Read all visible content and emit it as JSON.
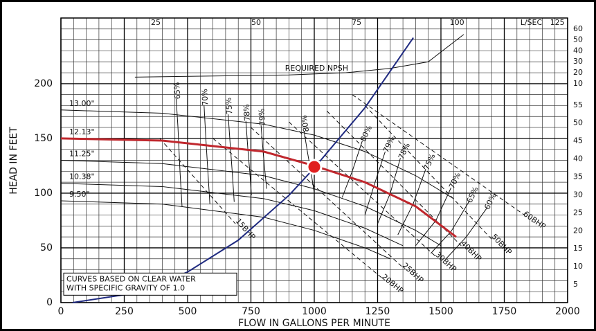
{
  "chart_data": {
    "type": "line",
    "xlabel": "FLOW IN GALLONS PER MINUTE",
    "ylabel": "HEAD IN FEET",
    "xlim": [
      0,
      2000
    ],
    "xticks": [
      0,
      250,
      500,
      750,
      1000,
      1250,
      1500,
      1750,
      2000
    ],
    "ylim": [
      0,
      260
    ],
    "yticks": [
      0,
      50,
      100,
      150,
      200
    ],
    "x2label": "L/SEC",
    "x2lim": [
      0,
      126.18
    ],
    "x2ticks": [
      25,
      50,
      75,
      100,
      125
    ],
    "y2lim": [
      0,
      79.25
    ],
    "y2ticks": [
      5,
      10,
      15,
      20,
      25,
      30,
      35,
      40,
      45,
      50,
      55
    ],
    "y3lim": [
      -190,
      70
    ],
    "y3ticks": [
      10,
      20,
      30,
      40,
      50,
      60
    ],
    "grid": true,
    "xgrid_step": 50,
    "ygrid_step": 10,
    "impeller_curves": [
      {
        "name": "13.00\"",
        "color": "#111111",
        "x": [
          0,
          400,
          800,
          1000,
          1200,
          1400,
          1550
        ],
        "values": [
          176,
          173,
          163,
          153,
          138,
          116,
          95
        ]
      },
      {
        "name": "12.13\"",
        "color": "#c0272d",
        "x": [
          0,
          400,
          800,
          1000,
          1200,
          1400,
          1560
        ],
        "values": [
          150,
          148,
          138,
          125,
          110,
          88,
          60
        ]
      },
      {
        "name": "11.25\"",
        "color": "#111111",
        "x": [
          0,
          400,
          800,
          1000,
          1200,
          1400,
          1500
        ],
        "values": [
          130,
          127,
          116,
          104,
          88,
          66,
          52
        ]
      },
      {
        "name": "10.38\"",
        "color": "#111111",
        "x": [
          0,
          400,
          800,
          1000,
          1200,
          1350
        ],
        "values": [
          109,
          106,
          95,
          84,
          68,
          52
        ]
      },
      {
        "name": "9.50\"",
        "color": "#111111",
        "x": [
          0,
          400,
          800,
          1000,
          1200,
          1300
        ],
        "values": [
          93,
          90,
          78,
          66,
          50,
          40
        ]
      }
    ],
    "efficiency_left": [
      {
        "name": "65%",
        "color": "#111111",
        "x": [
          455,
          462,
          470,
          478
        ],
        "values": [
          186,
          160,
          120,
          88
        ]
      },
      {
        "name": "70%",
        "color": "#111111",
        "x": [
          565,
          572,
          580,
          588
        ],
        "values": [
          180,
          150,
          120,
          90
        ]
      },
      {
        "name": "75%",
        "color": "#111111",
        "x": [
          660,
          668,
          676,
          684
        ],
        "values": [
          172,
          145,
          120,
          92
        ]
      },
      {
        "name": "78%",
        "color": "#111111",
        "x": [
          730,
          738,
          746,
          752
        ],
        "values": [
          166,
          140,
          118,
          98
        ]
      },
      {
        "name": "79%",
        "color": "#111111",
        "x": [
          790,
          798,
          806,
          812
        ],
        "values": [
          162,
          138,
          118,
          104
        ]
      },
      {
        "name": "80%",
        "color": "#111111",
        "x": [
          960,
          975,
          990,
          1000
        ],
        "values": [
          156,
          135,
          115,
          100
        ]
      }
    ],
    "efficiency_right": [
      {
        "name": "80%",
        "color": "#111111",
        "x": [
          1190,
          1150,
          1110
        ],
        "values": [
          148,
          120,
          96
        ]
      },
      {
        "name": "79%",
        "color": "#111111",
        "x": [
          1280,
          1240,
          1200
        ],
        "values": [
          138,
          110,
          80
        ]
      },
      {
        "name": "78%",
        "color": "#111111",
        "x": [
          1340,
          1300,
          1250
        ],
        "values": [
          132,
          100,
          72
        ]
      },
      {
        "name": "75%",
        "color": "#111111",
        "x": [
          1440,
          1390,
          1330
        ],
        "values": [
          122,
          90,
          62
        ]
      },
      {
        "name": "70%",
        "color": "#111111",
        "x": [
          1540,
          1480,
          1400
        ],
        "values": [
          105,
          75,
          52
        ]
      },
      {
        "name": "65%",
        "color": "#111111",
        "x": [
          1610,
          1540,
          1460
        ],
        "values": [
          92,
          65,
          45
        ]
      },
      {
        "name": "60%",
        "color": "#111111",
        "x": [
          1680,
          1600,
          1520
        ],
        "values": [
          86,
          60,
          40
        ]
      }
    ],
    "power_curves": [
      {
        "name": "15BHP",
        "color": "#111111",
        "dashed": true,
        "x": [
          390,
          689
        ],
        "values": [
          150,
          72
        ]
      },
      {
        "name": "20BHP",
        "color": "#111111",
        "dashed": true,
        "x": [
          600,
          1270
        ],
        "values": [
          150,
          22
        ]
      },
      {
        "name": "25BHP",
        "color": "#111111",
        "dashed": true,
        "x": [
          750,
          1350
        ],
        "values": [
          160,
          32
        ]
      },
      {
        "name": "30BHP",
        "color": "#111111",
        "dashed": true,
        "x": [
          900,
          1480
        ],
        "values": [
          165,
          42
        ]
      },
      {
        "name": "40BHP",
        "color": "#111111",
        "dashed": true,
        "x": [
          1050,
          1580
        ],
        "values": [
          175,
          52
        ]
      },
      {
        "name": "50BHP",
        "color": "#111111",
        "dashed": true,
        "x": [
          1200,
          1700
        ],
        "values": [
          180,
          58
        ]
      },
      {
        "name": "60BHP",
        "color": "#111111",
        "dashed": true,
        "x": [
          1150,
          1830
        ],
        "values": [
          190,
          80
        ]
      }
    ],
    "system_curve": {
      "color": "#1f2a80",
      "x": [
        46,
        300,
        500,
        700,
        900,
        1000,
        1200,
        1391
      ],
      "values": [
        0,
        9,
        28,
        57,
        98,
        123,
        178,
        242
      ]
    },
    "npsh_curve": {
      "name": "REQUIRED NPSH",
      "color": "#111111",
      "axis": "y3",
      "x": [
        292,
        600,
        900,
        1125,
        1300,
        1450,
        1590
      ],
      "values": [
        16,
        17,
        18,
        20,
        24,
        30,
        55
      ]
    },
    "operating_point": {
      "x": 1000,
      "value": 124,
      "color": "#e0201f"
    },
    "note": [
      "CURVES BASED ON CLEAR WATER",
      "WITH SPECIFIC GRAVITY OF 1.0"
    ]
  }
}
